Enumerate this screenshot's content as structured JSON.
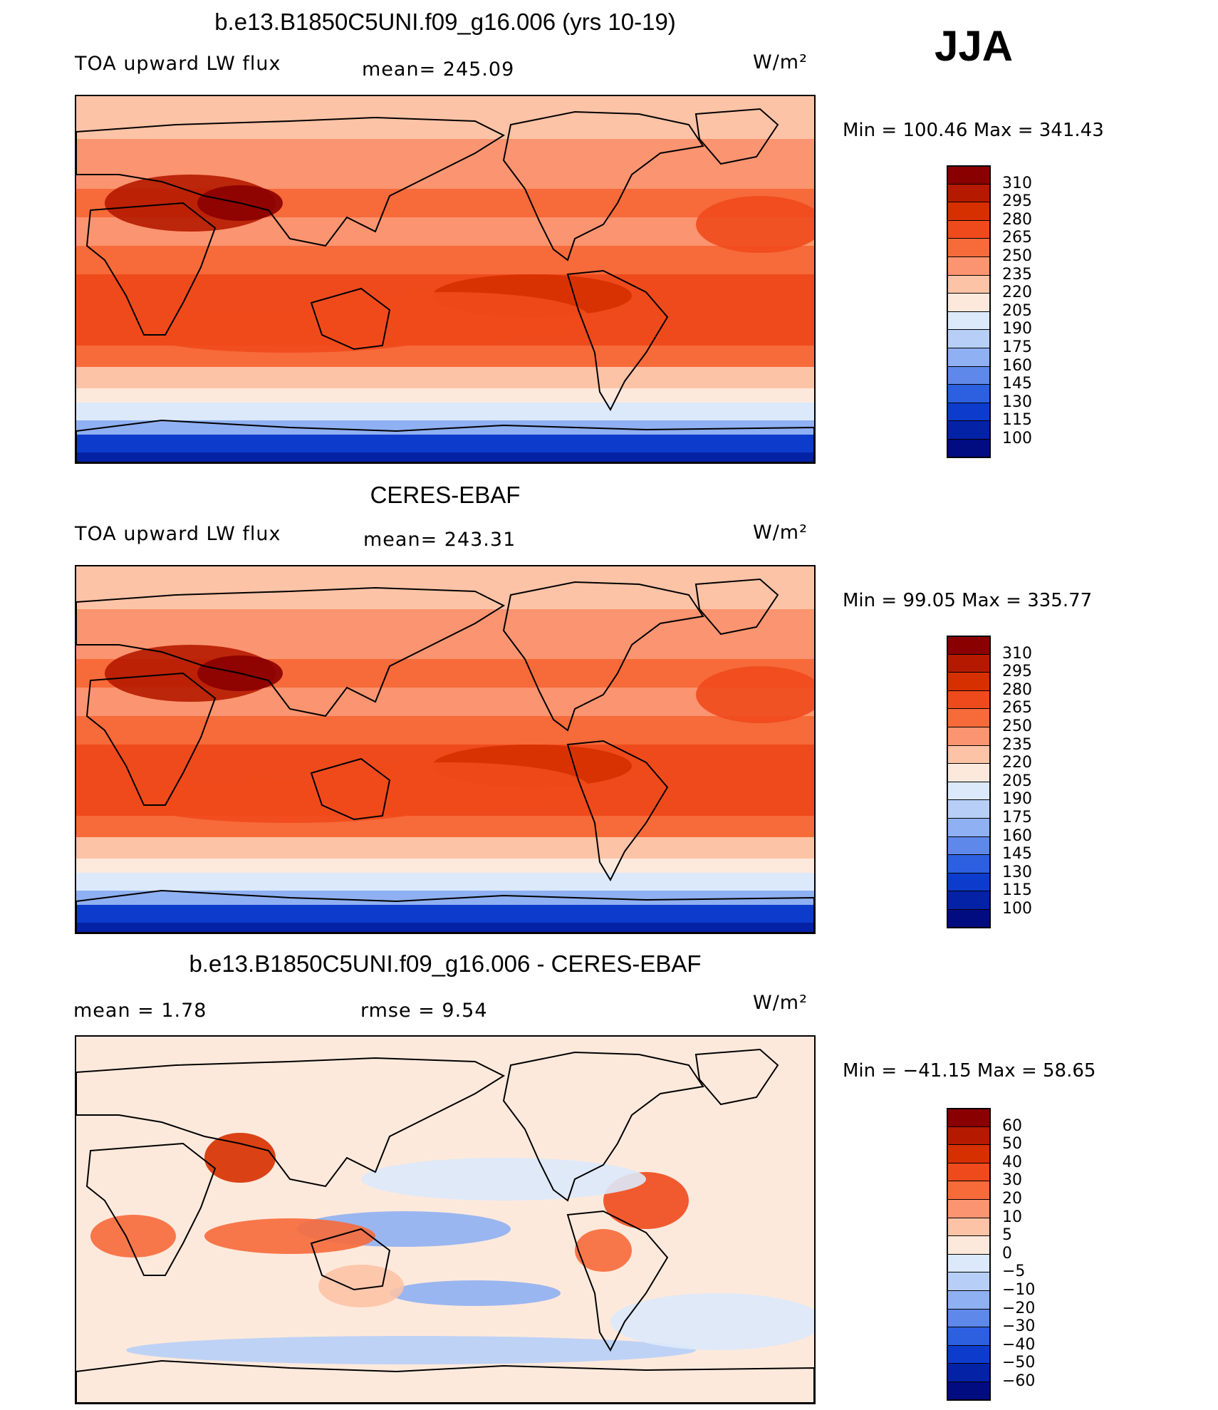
{
  "season": "JJA",
  "panels": [
    {
      "title": "b.e13.B1850C5UNI.f09_g16.006 (yrs 10-19)",
      "left_label": "TOA upward LW flux",
      "center_label": "mean= 245.09",
      "units": "W/m²",
      "minmax": "Min = 100.46 Max = 341.43",
      "kind": "abs",
      "colorbar_labels": [
        "310",
        "295",
        "280",
        "265",
        "250",
        "235",
        "220",
        "205",
        "190",
        "175",
        "160",
        "145",
        "130",
        "115",
        "100"
      ],
      "colorbar_colors": [
        "#8a0000",
        "#b51a00",
        "#d63000",
        "#ef4a1c",
        "#f76a3a",
        "#fb9470",
        "#fdc3a6",
        "#fde9dc",
        "#dbe9fb",
        "#b7cff7",
        "#8fb0f2",
        "#5e88ea",
        "#2d60e0",
        "#0d3ccc",
        "#0422a6",
        "#000c80"
      ]
    },
    {
      "title": "CERES-EBAF",
      "left_label": "TOA upward LW flux",
      "center_label": "mean= 243.31",
      "units": "W/m²",
      "minmax": "Min =  99.05 Max = 335.77",
      "kind": "abs",
      "colorbar_labels": [
        "310",
        "295",
        "280",
        "265",
        "250",
        "235",
        "220",
        "205",
        "190",
        "175",
        "160",
        "145",
        "130",
        "115",
        "100"
      ],
      "colorbar_colors": [
        "#8a0000",
        "#b51a00",
        "#d63000",
        "#ef4a1c",
        "#f76a3a",
        "#fb9470",
        "#fdc3a6",
        "#fde9dc",
        "#dbe9fb",
        "#b7cff7",
        "#8fb0f2",
        "#5e88ea",
        "#2d60e0",
        "#0d3ccc",
        "#0422a6",
        "#000c80"
      ]
    },
    {
      "title": "b.e13.B1850C5UNI.f09_g16.006 - CERES-EBAF",
      "left_label": "mean =     1.78",
      "center_label": "rmse =     9.54",
      "units": "W/m²",
      "minmax": "Min = −41.15 Max =   58.65",
      "kind": "diff",
      "colorbar_labels": [
        "60",
        "50",
        "40",
        "30",
        "20",
        "10",
        "5",
        "0",
        "−5",
        "−10",
        "−20",
        "−30",
        "−40",
        "−50",
        "−60"
      ],
      "colorbar_colors": [
        "#8a0000",
        "#b51a00",
        "#d63000",
        "#ef4a1c",
        "#f76a3a",
        "#fb9470",
        "#fdc3a6",
        "#fde9dc",
        "#dbe9fb",
        "#b7cff7",
        "#8fb0f2",
        "#5e88ea",
        "#2d60e0",
        "#0d3ccc",
        "#0422a6",
        "#000c80"
      ]
    }
  ]
}
